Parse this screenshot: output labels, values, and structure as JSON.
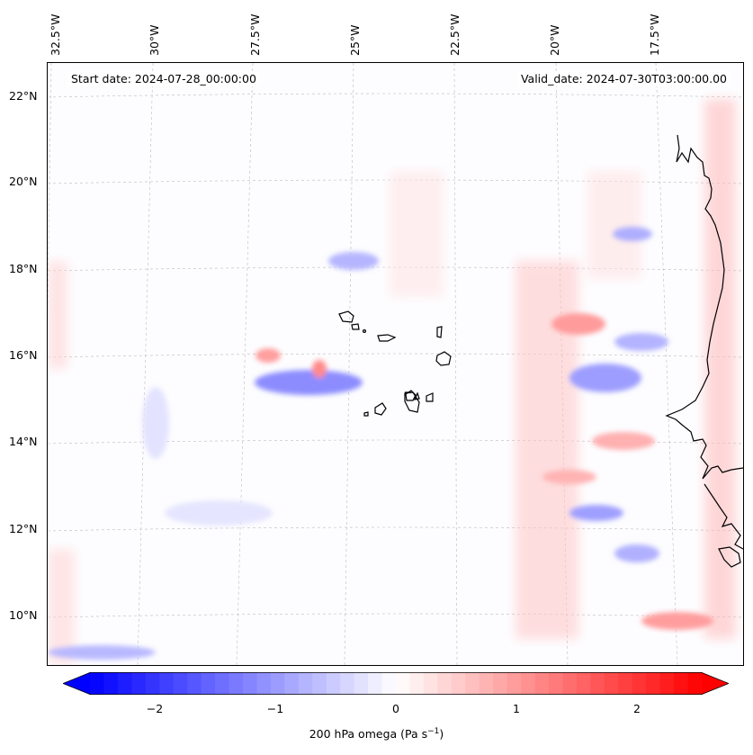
{
  "map": {
    "info": {
      "start_date": "Start date: 2024-07-28_00:00:00",
      "valid_date": "Valid_date: 2024-07-30T03:00:00.00"
    },
    "longitude_labels": [
      "32.5°W",
      "30°W",
      "27.5°W",
      "25°W",
      "22.5°W",
      "20°W",
      "17.5°W"
    ],
    "latitude_labels": [
      "22°N",
      "20°N",
      "18°N",
      "16°N",
      "14°N",
      "12°N",
      "10°N"
    ],
    "gridlines": true,
    "coastline_color": "#000000",
    "field_colors": {
      "negative": "#0000ff",
      "zero": "#ffffff",
      "positive": "#ff0000"
    }
  },
  "colorbar": {
    "ticks": [
      "−2",
      "−1",
      "0",
      "1",
      "2"
    ],
    "range": [
      -2.75,
      2.75
    ],
    "extend": "both",
    "label": "200 hPa omega (Pa s",
    "label_sup": "−1",
    "label_end": ")"
  }
}
